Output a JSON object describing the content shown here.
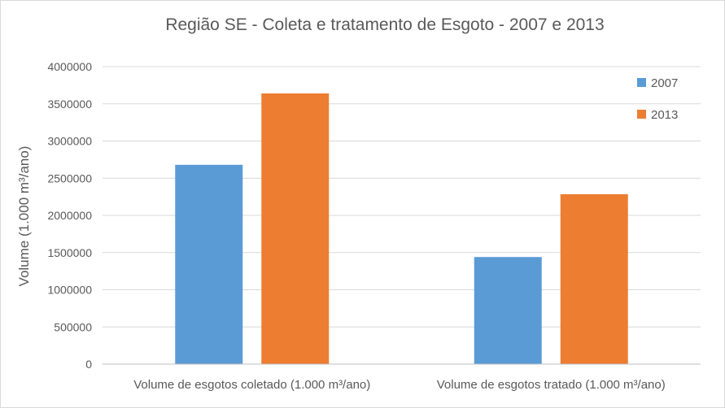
{
  "chart_data": {
    "type": "bar",
    "title": "Região SE - Coleta e tratamento de Esgoto - 2007 e 2013",
    "xlabel": "",
    "ylabel": "Volume (1.000 m³/ano)",
    "categories": [
      "Volume de esgotos coletado (1.000 m³/ano)",
      "Volume de esgotos tratado (1.000 m³/ano)"
    ],
    "series": [
      {
        "name": "2007",
        "color": "#5b9bd5",
        "values": [
          2680000,
          1440000
        ]
      },
      {
        "name": "2013",
        "color": "#ed7d31",
        "values": [
          3640000,
          2285000
        ]
      }
    ],
    "ylim": [
      0,
      4000000
    ],
    "yticks": [
      0,
      500000,
      1000000,
      1500000,
      2000000,
      2500000,
      3000000,
      3500000,
      4000000
    ],
    "ytick_labels": [
      "0",
      "500000",
      "1000000",
      "1500000",
      "2000000",
      "2500000",
      "3000000",
      "3500000",
      "4000000"
    ],
    "grid": true,
    "legend_position": "top-right"
  }
}
